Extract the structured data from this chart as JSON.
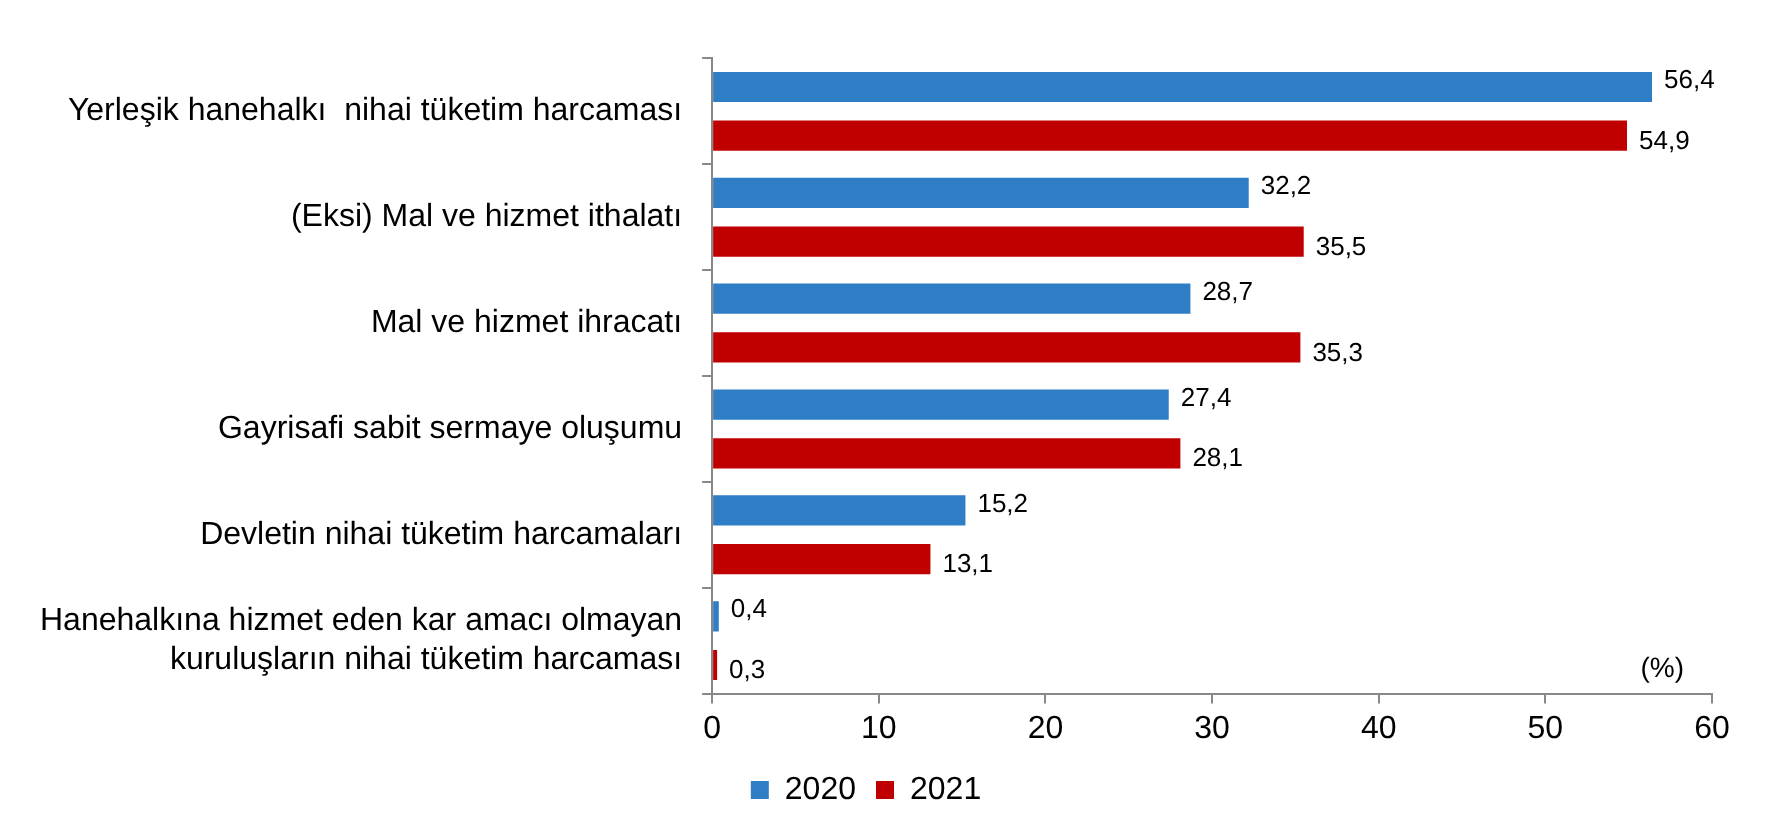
{
  "chart_data": {
    "type": "bar",
    "orientation": "horizontal",
    "categories": [
      "Yerleşik hanehalkı  nihai tüketim harcaması",
      "(Eksi) Mal ve hizmet ithalatı",
      "Mal ve hizmet ihracatı",
      "Gayrisafi sabit sermaye oluşumu",
      "Devletin nihai tüketim harcamaları",
      "Hanehalkına hizmet eden kar amacı olmayan kuruluşların nihai tüketim harcaması"
    ],
    "series": [
      {
        "name": "2020",
        "color": "#2e7ec6",
        "values": [
          56.4,
          32.2,
          28.7,
          27.4,
          15.2,
          0.4
        ],
        "value_labels": [
          "56,4",
          "32,2",
          "28,7",
          "27,4",
          "15,2",
          "0,4"
        ]
      },
      {
        "name": "2021",
        "color": "#c00000",
        "values": [
          54.9,
          35.5,
          35.3,
          28.1,
          13.1,
          0.3
        ],
        "value_labels": [
          "54,9",
          "35,5",
          "35,3",
          "28,1",
          "13,1",
          "0,3"
        ]
      }
    ],
    "xlim": [
      0,
      60
    ],
    "xticks": [
      0,
      10,
      20,
      30,
      40,
      50,
      60
    ],
    "grid": false,
    "legend": "bottom",
    "annotations": [
      "(%)"
    ]
  }
}
